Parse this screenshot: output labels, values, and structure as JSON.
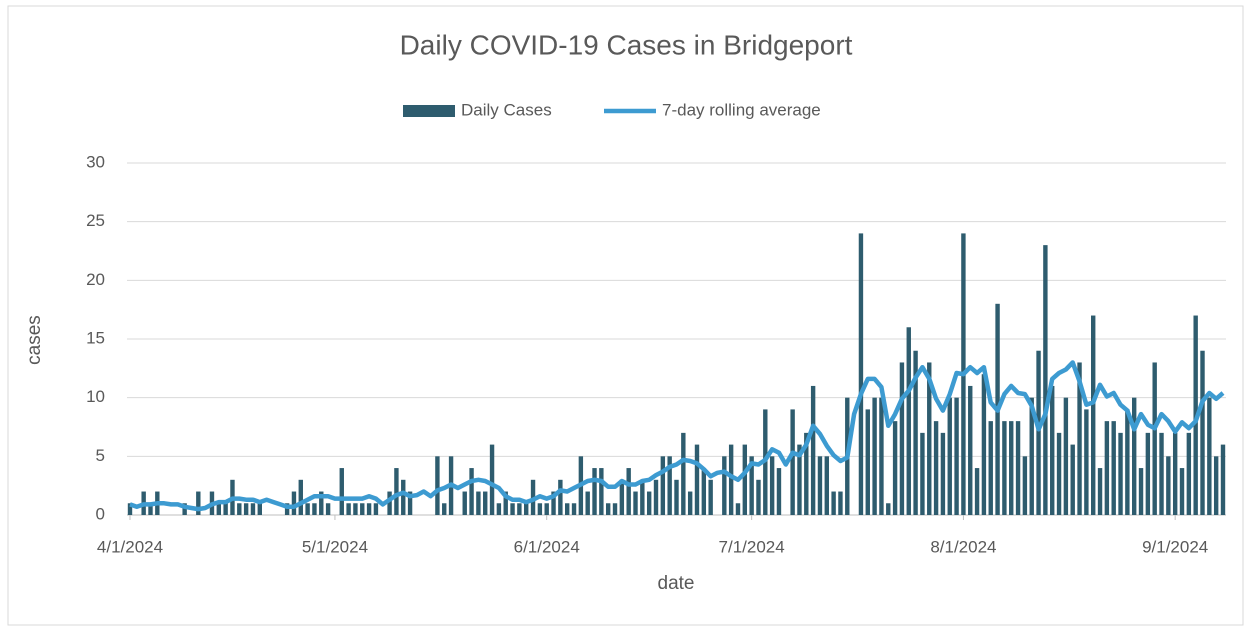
{
  "chart_data": {
    "type": "bar-line",
    "title": "Daily COVID-19 Cases in Bridgeport",
    "x_label": "date",
    "y_label": "cases",
    "xlim": [
      "2024-04-01",
      "2024-09-08"
    ],
    "xticks": [
      {
        "value": "2024-04-01",
        "label": "4/1/2024"
      },
      {
        "value": "2024-05-01",
        "label": "5/1/2024"
      },
      {
        "value": "2024-06-01",
        "label": "6/1/2024"
      },
      {
        "value": "2024-07-01",
        "label": "7/1/2024"
      },
      {
        "value": "2024-08-01",
        "label": "8/1/2024"
      },
      {
        "value": "2024-09-01",
        "label": "9/1/2024"
      }
    ],
    "ylim": [
      0,
      30
    ],
    "yticks": [
      0,
      5,
      10,
      15,
      20,
      25,
      30
    ],
    "grid": true,
    "legend": "top",
    "start": "2024-04-01",
    "series": [
      {
        "name": "Daily Cases",
        "kind": "bar",
        "color": "#2e5c6e",
        "values": [
          1,
          0,
          2,
          1,
          2,
          0,
          0,
          0,
          1,
          0,
          2,
          0,
          2,
          1,
          1,
          3,
          1,
          1,
          1,
          1,
          0,
          0,
          0,
          1,
          2,
          3,
          1,
          1,
          2,
          1,
          0,
          4,
          1,
          1,
          1,
          1,
          1,
          0,
          2,
          4,
          3,
          2,
          0,
          0,
          0,
          5,
          1,
          5,
          0,
          2,
          4,
          2,
          2,
          6,
          1,
          2,
          1,
          1,
          1,
          3,
          1,
          1,
          2,
          3,
          1,
          1,
          5,
          2,
          4,
          4,
          1,
          1,
          3,
          4,
          2,
          3,
          2,
          3,
          5,
          5,
          3,
          7,
          2,
          6,
          4,
          3,
          0,
          5,
          6,
          1,
          6,
          5,
          3,
          9,
          5,
          4,
          0,
          9,
          6,
          7,
          11,
          5,
          5,
          2,
          2,
          10,
          0,
          24,
          9,
          10,
          10,
          1,
          8,
          13,
          16,
          14,
          7,
          13,
          8,
          7,
          10,
          10,
          24,
          11,
          4,
          12,
          8,
          18,
          8,
          8,
          8,
          5,
          10,
          14,
          23,
          11,
          7,
          10,
          6,
          13,
          9,
          17,
          4,
          8,
          8,
          7,
          9,
          10,
          4,
          7,
          13,
          7,
          5,
          7,
          4,
          7,
          17,
          14,
          10,
          5,
          6
        ]
      },
      {
        "name": "7-day rolling average",
        "kind": "line",
        "color": "#3d9bd1",
        "values": [
          0.9,
          0.7,
          0.9,
          0.9,
          1.0,
          1.0,
          0.9,
          0.9,
          0.7,
          0.6,
          0.5,
          0.6,
          0.9,
          1.1,
          1.1,
          1.4,
          1.4,
          1.3,
          1.3,
          1.1,
          1.3,
          1.1,
          0.9,
          0.7,
          0.7,
          1.0,
          1.3,
          1.6,
          1.6,
          1.6,
          1.4,
          1.4,
          1.4,
          1.4,
          1.4,
          1.6,
          1.4,
          0.9,
          1.3,
          1.7,
          1.9,
          1.6,
          1.7,
          2.0,
          1.6,
          2.1,
          2.3,
          2.6,
          2.3,
          2.6,
          2.9,
          3.0,
          2.9,
          2.6,
          2.3,
          1.6,
          1.3,
          1.3,
          1.1,
          1.3,
          1.6,
          1.4,
          1.6,
          2.1,
          2.0,
          2.3,
          2.6,
          2.9,
          3.0,
          2.9,
          2.4,
          2.4,
          2.9,
          2.6,
          2.6,
          2.9,
          3.0,
          3.4,
          3.7,
          4.1,
          4.3,
          4.7,
          4.6,
          4.4,
          3.9,
          3.3,
          3.6,
          3.7,
          3.3,
          3.0,
          3.6,
          4.4,
          4.3,
          4.7,
          5.6,
          5.3,
          4.3,
          5.3,
          5.1,
          6.0,
          7.6,
          6.9,
          5.9,
          5.1,
          4.6,
          4.9,
          8.6,
          10.3,
          11.6,
          11.6,
          10.9,
          7.6,
          8.6,
          9.9,
          10.6,
          11.7,
          12.6,
          11.6,
          9.9,
          8.9,
          10.3,
          12.1,
          12.0,
          12.6,
          12.1,
          12.6,
          9.6,
          8.9,
          10.3,
          11.0,
          10.4,
          10.3,
          9.3,
          7.3,
          8.6,
          11.6,
          12.1,
          12.4,
          13.0,
          11.4,
          9.4,
          9.6,
          11.1,
          10.1,
          10.4,
          9.4,
          8.9,
          7.3,
          8.6,
          7.7,
          7.4,
          8.6,
          8.0,
          7.1,
          7.9,
          7.4,
          8.0,
          9.7,
          10.4,
          9.9,
          10.4
        ]
      }
    ]
  }
}
